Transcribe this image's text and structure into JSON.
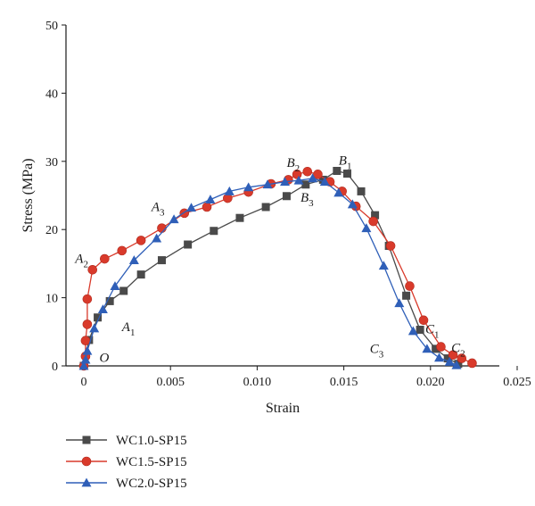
{
  "chart_data": {
    "type": "line",
    "title": "",
    "xlabel": "Strain",
    "ylabel": "Stress (MPa)",
    "xlim": [
      0,
      0.025
    ],
    "ylim": [
      0,
      50
    ],
    "xticks": [
      "0",
      "0.005",
      "0.010",
      "0.015",
      "0.020",
      "0.025"
    ],
    "yticks": [
      "0",
      "10",
      "20",
      "30",
      "40",
      "50"
    ],
    "grid": false,
    "legend_position": "bottom-left",
    "series": [
      {
        "name": "WC1.0-SP15",
        "color": "#4a4a4a",
        "marker": "square",
        "points": [
          [
            0,
            0
          ],
          [
            0.0003,
            3.8
          ],
          [
            0.0008,
            7.1
          ],
          [
            0.0015,
            9.5
          ],
          [
            0.0023,
            11.0
          ],
          [
            0.0033,
            13.4
          ],
          [
            0.0045,
            15.5
          ],
          [
            0.006,
            17.8
          ],
          [
            0.0075,
            19.8
          ],
          [
            0.009,
            21.7
          ],
          [
            0.0105,
            23.3
          ],
          [
            0.0117,
            24.9
          ],
          [
            0.0128,
            26.6
          ],
          [
            0.0138,
            27.3
          ],
          [
            0.0146,
            28.6
          ],
          [
            0.0152,
            28.2
          ],
          [
            0.016,
            25.6
          ],
          [
            0.0168,
            22.1
          ],
          [
            0.0176,
            17.6
          ],
          [
            0.0186,
            10.3
          ],
          [
            0.0194,
            5.3
          ],
          [
            0.0203,
            2.5
          ],
          [
            0.021,
            1.1
          ],
          [
            0.0216,
            0.3
          ]
        ]
      },
      {
        "name": "WC1.5-SP15",
        "color": "#d93a2b",
        "marker": "circle",
        "points": [
          [
            0,
            0
          ],
          [
            0.0001,
            1.4
          ],
          [
            0.0001,
            3.7
          ],
          [
            0.0002,
            6.1
          ],
          [
            0.0002,
            9.8
          ],
          [
            0.0005,
            14.1
          ],
          [
            0.0012,
            15.7
          ],
          [
            0.0022,
            16.9
          ],
          [
            0.0033,
            18.4
          ],
          [
            0.0045,
            20.2
          ],
          [
            0.0058,
            22.4
          ],
          [
            0.0071,
            23.3
          ],
          [
            0.0083,
            24.6
          ],
          [
            0.0095,
            25.5
          ],
          [
            0.0108,
            26.7
          ],
          [
            0.0118,
            27.3
          ],
          [
            0.0123,
            28.1
          ],
          [
            0.0129,
            28.5
          ],
          [
            0.0135,
            28.1
          ],
          [
            0.0142,
            27.0
          ],
          [
            0.0149,
            25.6
          ],
          [
            0.0157,
            23.4
          ],
          [
            0.0167,
            21.2
          ],
          [
            0.0177,
            17.6
          ],
          [
            0.0188,
            11.7
          ],
          [
            0.0196,
            6.7
          ],
          [
            0.0206,
            2.8
          ],
          [
            0.0213,
            1.6
          ],
          [
            0.0218,
            1.1
          ],
          [
            0.0224,
            0.4
          ]
        ]
      },
      {
        "name": "WC2.0-SP15",
        "color": "#2f5fb8",
        "marker": "triangle",
        "points": [
          [
            0,
            0
          ],
          [
            0.0001,
            0.9
          ],
          [
            0.0002,
            2.2
          ],
          [
            0.0006,
            5.5
          ],
          [
            0.0011,
            8.3
          ],
          [
            0.0018,
            11.7
          ],
          [
            0.0029,
            15.5
          ],
          [
            0.0042,
            18.7
          ],
          [
            0.0052,
            21.5
          ],
          [
            0.0062,
            23.2
          ],
          [
            0.0073,
            24.4
          ],
          [
            0.0084,
            25.6
          ],
          [
            0.0095,
            26.2
          ],
          [
            0.0106,
            26.6
          ],
          [
            0.0116,
            27.0
          ],
          [
            0.0124,
            27.2
          ],
          [
            0.0132,
            27.5
          ],
          [
            0.0139,
            27.0
          ],
          [
            0.0147,
            25.4
          ],
          [
            0.0155,
            23.7
          ],
          [
            0.0163,
            20.2
          ],
          [
            0.0173,
            14.7
          ],
          [
            0.0182,
            9.2
          ],
          [
            0.019,
            5.1
          ],
          [
            0.0198,
            2.5
          ],
          [
            0.0205,
            1.2
          ],
          [
            0.0211,
            0.6
          ],
          [
            0.0215,
            0.1
          ]
        ]
      }
    ],
    "annotations": [
      {
        "letter": "O",
        "sub": "",
        "x": 0.0009,
        "y": 0.6
      },
      {
        "letter": "A",
        "sub": "1",
        "x": 0.0022,
        "y": 5.1
      },
      {
        "letter": "A",
        "sub": "2",
        "x": -0.0005,
        "y": 15.1
      },
      {
        "letter": "A",
        "sub": "3",
        "x": 0.0039,
        "y": 22.7
      },
      {
        "letter": "B",
        "sub": "1",
        "x": 0.0147,
        "y": 29.5
      },
      {
        "letter": "B",
        "sub": "2",
        "x": 0.0117,
        "y": 29.2
      },
      {
        "letter": "B",
        "sub": "3",
        "x": 0.0125,
        "y": 24.1
      },
      {
        "letter": "C",
        "sub": "1",
        "x": 0.0197,
        "y": 4.8
      },
      {
        "letter": "C",
        "sub": "2",
        "x": 0.0212,
        "y": 2.0
      },
      {
        "letter": "C",
        "sub": "3",
        "x": 0.0165,
        "y": 1.9
      }
    ]
  }
}
